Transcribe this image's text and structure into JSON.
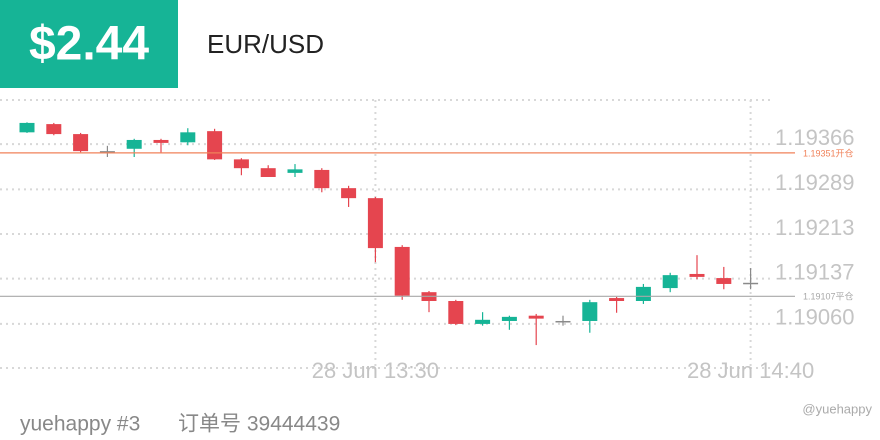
{
  "header": {
    "amount": "$2.44",
    "pair": "EUR/USD"
  },
  "chart_data": {
    "type": "candlestick",
    "categories": [
      null,
      null,
      null,
      null,
      null,
      null,
      null,
      null,
      null,
      null,
      null,
      null,
      null,
      "28 Jun 13:30",
      null,
      null,
      null,
      null,
      null,
      null,
      null,
      null,
      null,
      null,
      null,
      null,
      null,
      "28 Jun 14:40"
    ],
    "open": [
      1.19386,
      1.194,
      1.19383,
      1.19354,
      1.19358,
      1.19373,
      1.19369,
      1.19388,
      1.1934,
      1.19325,
      1.19317,
      1.19322,
      1.19291,
      1.19274,
      1.19191,
      1.19114,
      1.19099,
      1.1906,
      1.19065,
      1.19074,
      1.19065,
      1.19065,
      1.19104,
      1.19099,
      1.19121,
      1.19145,
      1.19138,
      1.1913
    ],
    "high": [
      1.19403,
      1.19402,
      1.19385,
      1.19363,
      1.19375,
      1.19375,
      1.19393,
      1.19392,
      1.19342,
      1.1933,
      1.19332,
      1.19325,
      1.19295,
      1.19276,
      1.19194,
      1.19116,
      1.19101,
      1.1908,
      1.19074,
      1.19077,
      1.19074,
      1.19101,
      1.19106,
      1.19128,
      1.19147,
      1.19177,
      1.19157,
      1.19155
    ],
    "low": [
      1.19385,
      1.19381,
      1.19352,
      1.19344,
      1.19344,
      1.19351,
      1.19364,
      1.19339,
      1.19313,
      1.1931,
      1.1931,
      1.19284,
      1.19259,
      1.19165,
      1.19101,
      1.1908,
      1.19058,
      1.19057,
      1.1905,
      1.19024,
      1.19057,
      1.19045,
      1.19079,
      1.19094,
      1.19114,
      1.19136,
      1.19119,
      1.19119
    ],
    "close": [
      1.19402,
      1.19383,
      1.19354,
      1.19354,
      1.19373,
      1.19368,
      1.19386,
      1.1934,
      1.19325,
      1.1931,
      1.19323,
      1.19291,
      1.19274,
      1.19189,
      1.19108,
      1.19099,
      1.1906,
      1.19067,
      1.19072,
      1.19069,
      1.19065,
      1.19097,
      1.19099,
      1.19123,
      1.19143,
      1.1914,
      1.19128,
      1.1913
    ],
    "up_color": "#16b496",
    "down_color": "#e5454f",
    "flat_color": "#8a8a8a",
    "ylim": [
      1.18985,
      1.19441
    ],
    "yticks": [
      {
        "value": 1.19366,
        "label": "1.19366"
      },
      {
        "value": 1.19289,
        "label": "1.19289"
      },
      {
        "value": 1.19213,
        "label": "1.19213"
      },
      {
        "value": 1.19137,
        "label": "1.19137"
      },
      {
        "value": 1.1906,
        "label": "1.19060"
      }
    ],
    "hlines": [
      {
        "value": 1.19351,
        "label": "1.19351开仓",
        "color": "#f0825a"
      },
      {
        "value": 1.19107,
        "label": "1.19107平仓",
        "color": "#a8a8a8"
      }
    ],
    "grid": true
  },
  "footer": {
    "account": "yuehappy #3",
    "order": "订单号 39444439",
    "watermark": "@yuehappy"
  }
}
